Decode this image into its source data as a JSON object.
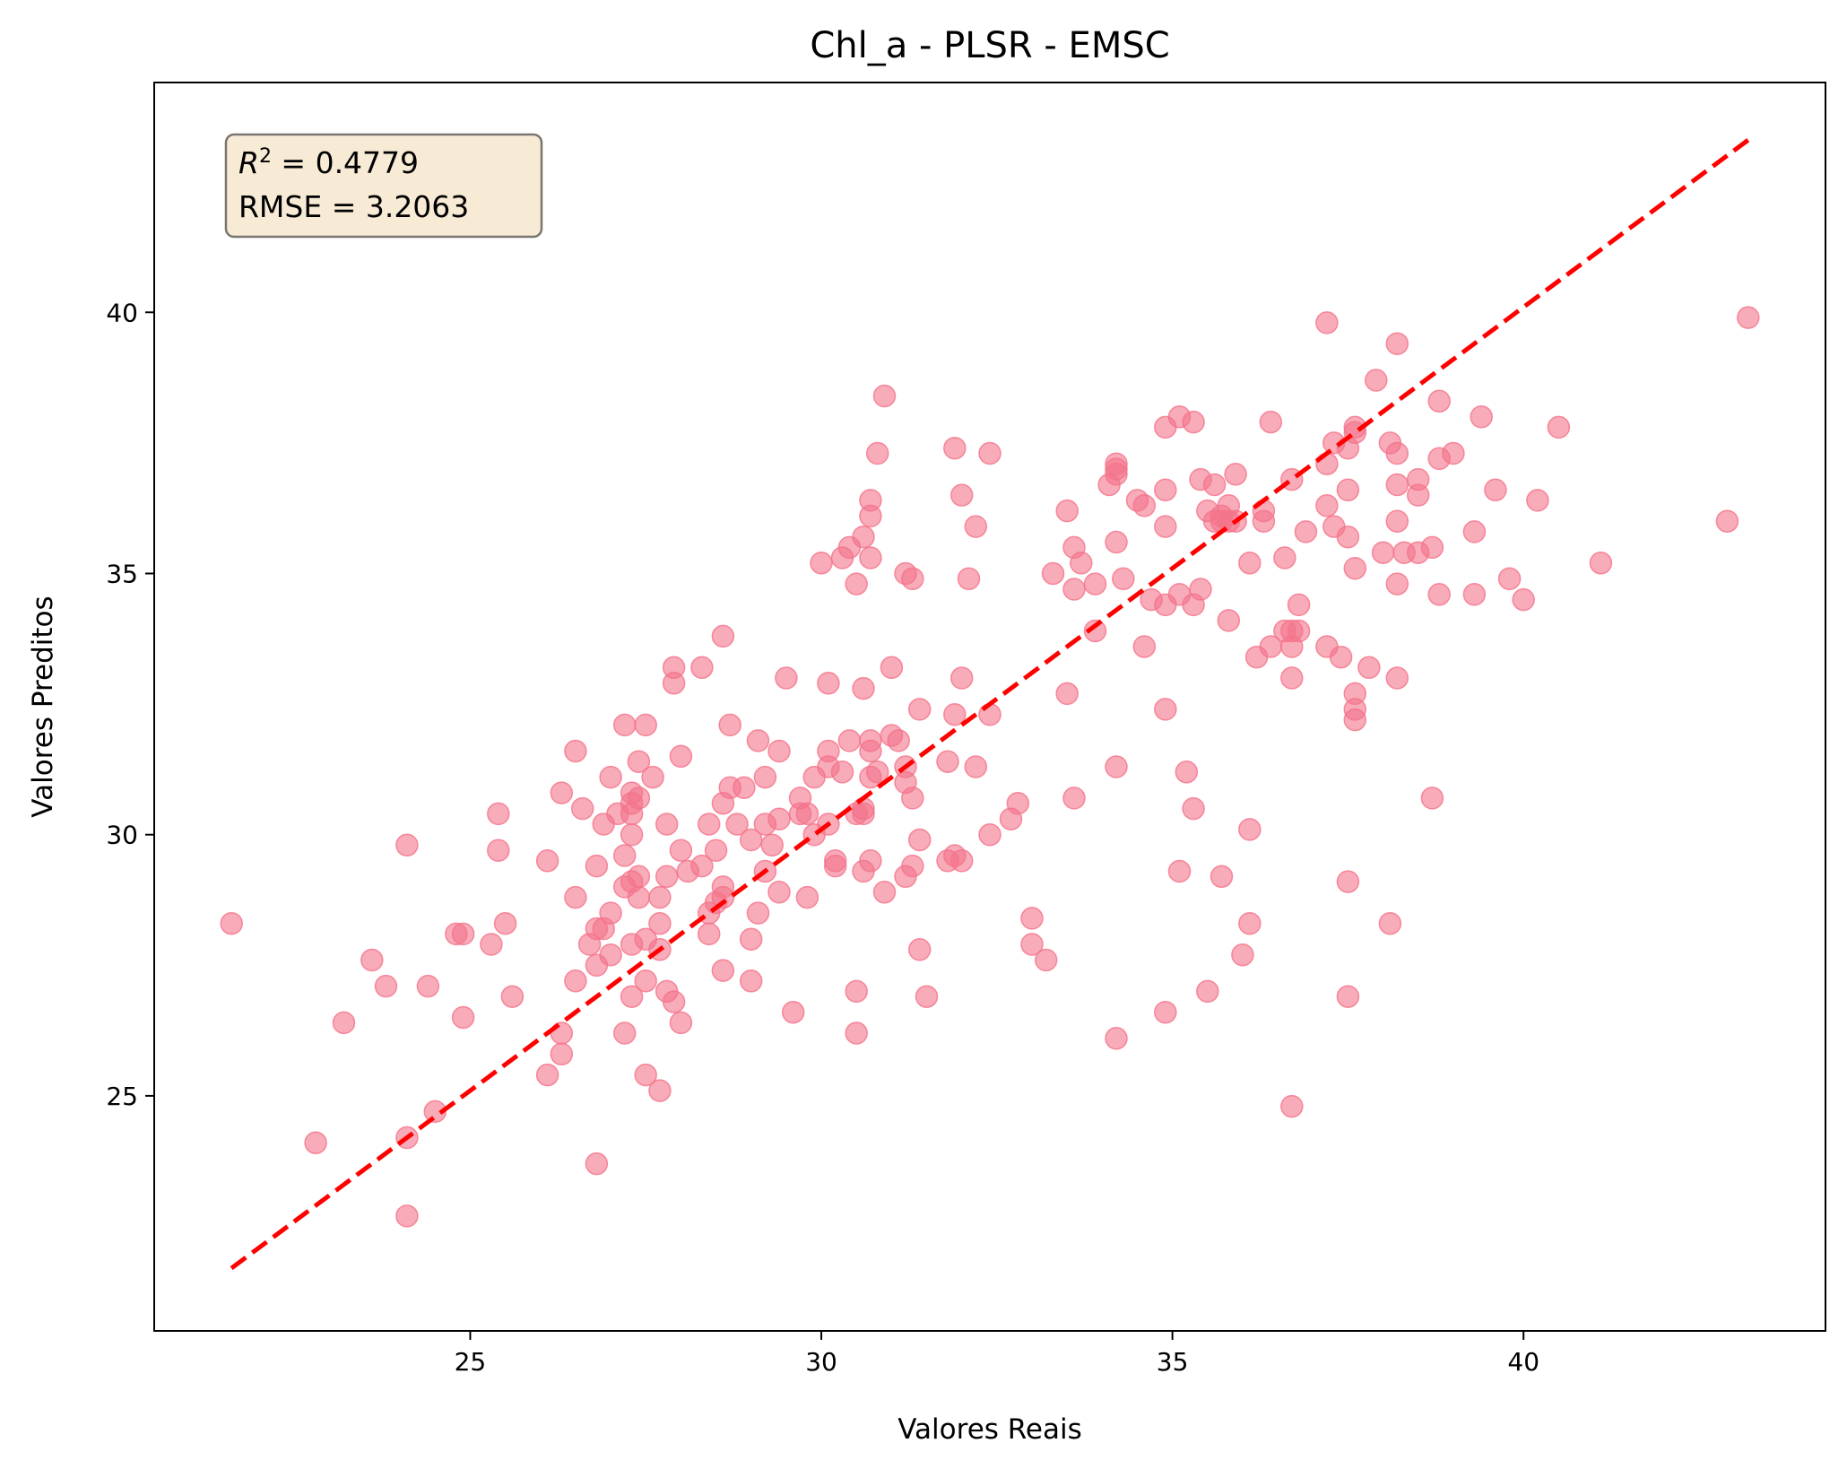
{
  "chart_data": {
    "type": "scatter",
    "title": "Chl_a - PLSR - EMSC",
    "xlabel": "Valores Reais",
    "ylabel": "Valores Preditos",
    "xlim": [
      20.5,
      44.3
    ],
    "ylim": [
      20.5,
      44.4
    ],
    "xticks": [
      25,
      30,
      35,
      40
    ],
    "yticks": [
      25,
      30,
      35,
      40
    ],
    "grid": false,
    "stats": {
      "r2_prefix": "R",
      "r2_sup": "2",
      "r2_value": " = 0.4779",
      "rmse": "RMSE = 3.2063"
    },
    "colors": {
      "points": "#f4738a",
      "line": "#ff0000",
      "box_fill": "#f8ebd6",
      "box_edge": "#7a7570"
    },
    "reference_line": {
      "from": [
        21.6,
        21.7
      ],
      "to": [
        43.2,
        43.3
      ],
      "style": "dashed"
    },
    "points": [
      [
        21.6,
        28.3
      ],
      [
        22.8,
        24.1
      ],
      [
        23.2,
        26.4
      ],
      [
        23.6,
        27.6
      ],
      [
        23.8,
        27.1
      ],
      [
        24.1,
        29.8
      ],
      [
        24.1,
        24.2
      ],
      [
        24.1,
        22.7
      ],
      [
        24.4,
        27.1
      ],
      [
        24.5,
        24.7
      ],
      [
        24.8,
        28.1
      ],
      [
        24.9,
        28.1
      ],
      [
        24.9,
        26.5
      ],
      [
        25.3,
        27.9
      ],
      [
        25.4,
        30.4
      ],
      [
        25.4,
        29.7
      ],
      [
        25.5,
        28.3
      ],
      [
        25.6,
        26.9
      ],
      [
        26.1,
        29.5
      ],
      [
        26.1,
        25.4
      ],
      [
        26.3,
        30.8
      ],
      [
        26.3,
        26.2
      ],
      [
        26.3,
        25.8
      ],
      [
        26.5,
        31.6
      ],
      [
        26.5,
        28.8
      ],
      [
        26.5,
        27.2
      ],
      [
        26.6,
        30.5
      ],
      [
        26.7,
        27.9
      ],
      [
        26.8,
        29.4
      ],
      [
        26.8,
        28.2
      ],
      [
        26.8,
        27.5
      ],
      [
        26.8,
        23.7
      ],
      [
        26.9,
        30.2
      ],
      [
        26.9,
        28.2
      ],
      [
        27.0,
        31.1
      ],
      [
        27.0,
        28.5
      ],
      [
        27.0,
        27.7
      ],
      [
        27.1,
        30.4
      ],
      [
        27.2,
        32.1
      ],
      [
        27.2,
        29.6
      ],
      [
        27.2,
        29.0
      ],
      [
        27.2,
        26.2
      ],
      [
        27.3,
        30.8
      ],
      [
        27.3,
        30.6
      ],
      [
        27.3,
        30.4
      ],
      [
        27.3,
        30.0
      ],
      [
        27.3,
        29.1
      ],
      [
        27.3,
        27.9
      ],
      [
        27.3,
        26.9
      ],
      [
        27.4,
        31.4
      ],
      [
        27.4,
        30.7
      ],
      [
        27.4,
        29.2
      ],
      [
        27.4,
        28.8
      ],
      [
        27.5,
        32.1
      ],
      [
        27.5,
        28.0
      ],
      [
        27.5,
        27.2
      ],
      [
        27.5,
        25.4
      ],
      [
        27.6,
        31.1
      ],
      [
        27.7,
        28.3
      ],
      [
        27.7,
        27.8
      ],
      [
        27.7,
        25.1
      ],
      [
        27.7,
        28.8
      ],
      [
        27.8,
        30.2
      ],
      [
        27.8,
        29.2
      ],
      [
        27.8,
        27.0
      ],
      [
        27.9,
        33.2
      ],
      [
        27.9,
        32.9
      ],
      [
        27.9,
        26.8
      ],
      [
        28.0,
        31.5
      ],
      [
        28.0,
        29.7
      ],
      [
        28.0,
        26.4
      ],
      [
        28.1,
        29.3
      ],
      [
        28.3,
        33.2
      ],
      [
        28.3,
        29.4
      ],
      [
        28.4,
        30.2
      ],
      [
        28.4,
        28.5
      ],
      [
        28.4,
        28.1
      ],
      [
        28.5,
        29.7
      ],
      [
        28.5,
        28.7
      ],
      [
        28.6,
        33.8
      ],
      [
        28.6,
        30.6
      ],
      [
        28.6,
        29.0
      ],
      [
        28.6,
        28.8
      ],
      [
        28.6,
        27.4
      ],
      [
        28.7,
        32.1
      ],
      [
        28.7,
        30.9
      ],
      [
        28.8,
        30.2
      ],
      [
        28.9,
        30.9
      ],
      [
        29.0,
        29.9
      ],
      [
        29.0,
        28.0
      ],
      [
        29.0,
        27.2
      ],
      [
        29.1,
        31.8
      ],
      [
        29.1,
        28.5
      ],
      [
        29.2,
        31.1
      ],
      [
        29.2,
        30.2
      ],
      [
        29.2,
        29.3
      ],
      [
        29.3,
        29.8
      ],
      [
        29.4,
        31.6
      ],
      [
        29.4,
        30.3
      ],
      [
        29.4,
        28.9
      ],
      [
        29.5,
        33.0
      ],
      [
        29.6,
        26.6
      ],
      [
        29.7,
        30.7
      ],
      [
        29.7,
        30.4
      ],
      [
        29.8,
        30.4
      ],
      [
        29.8,
        28.8
      ],
      [
        29.9,
        31.1
      ],
      [
        29.9,
        30.0
      ],
      [
        30.0,
        35.2
      ],
      [
        30.1,
        32.9
      ],
      [
        30.1,
        31.6
      ],
      [
        30.1,
        31.3
      ],
      [
        30.1,
        30.2
      ],
      [
        30.2,
        29.5
      ],
      [
        30.2,
        29.4
      ],
      [
        30.3,
        35.3
      ],
      [
        30.3,
        31.2
      ],
      [
        30.4,
        35.5
      ],
      [
        30.4,
        31.8
      ],
      [
        30.5,
        34.8
      ],
      [
        30.5,
        30.4
      ],
      [
        30.5,
        27.0
      ],
      [
        30.5,
        26.2
      ],
      [
        30.6,
        35.7
      ],
      [
        30.6,
        32.8
      ],
      [
        30.6,
        30.5
      ],
      [
        30.6,
        30.4
      ],
      [
        30.6,
        29.3
      ],
      [
        30.7,
        36.4
      ],
      [
        30.7,
        36.1
      ],
      [
        30.7,
        35.3
      ],
      [
        30.7,
        31.8
      ],
      [
        30.7,
        31.6
      ],
      [
        30.7,
        31.1
      ],
      [
        30.7,
        29.5
      ],
      [
        30.8,
        37.3
      ],
      [
        30.8,
        31.2
      ],
      [
        30.9,
        38.4
      ],
      [
        30.9,
        28.9
      ],
      [
        31.0,
        33.2
      ],
      [
        31.0,
        31.9
      ],
      [
        31.1,
        31.8
      ],
      [
        31.2,
        35.0
      ],
      [
        31.2,
        31.3
      ],
      [
        31.2,
        31.0
      ],
      [
        31.2,
        29.2
      ],
      [
        31.3,
        34.9
      ],
      [
        31.3,
        30.7
      ],
      [
        31.3,
        29.4
      ],
      [
        31.4,
        32.4
      ],
      [
        31.4,
        29.9
      ],
      [
        31.4,
        27.8
      ],
      [
        31.5,
        26.9
      ],
      [
        31.8,
        31.4
      ],
      [
        31.8,
        29.5
      ],
      [
        31.9,
        37.4
      ],
      [
        31.9,
        32.3
      ],
      [
        31.9,
        29.6
      ],
      [
        32.0,
        36.5
      ],
      [
        32.0,
        33.0
      ],
      [
        32.0,
        29.5
      ],
      [
        32.1,
        34.9
      ],
      [
        32.2,
        35.9
      ],
      [
        32.2,
        31.3
      ],
      [
        32.4,
        37.3
      ],
      [
        32.4,
        32.3
      ],
      [
        32.4,
        30.0
      ],
      [
        32.7,
        30.3
      ],
      [
        32.8,
        30.6
      ],
      [
        33.0,
        28.4
      ],
      [
        33.0,
        27.9
      ],
      [
        33.2,
        27.6
      ],
      [
        33.3,
        35.0
      ],
      [
        33.5,
        36.2
      ],
      [
        33.5,
        32.7
      ],
      [
        33.6,
        35.5
      ],
      [
        33.6,
        34.7
      ],
      [
        33.6,
        30.7
      ],
      [
        33.7,
        35.2
      ],
      [
        33.9,
        34.8
      ],
      [
        33.9,
        33.9
      ],
      [
        34.1,
        36.7
      ],
      [
        34.2,
        37.1
      ],
      [
        34.2,
        37.0
      ],
      [
        34.2,
        36.9
      ],
      [
        34.2,
        35.6
      ],
      [
        34.2,
        31.3
      ],
      [
        34.2,
        26.1
      ],
      [
        34.3,
        34.9
      ],
      [
        34.5,
        36.4
      ],
      [
        34.6,
        36.3
      ],
      [
        34.6,
        33.6
      ],
      [
        34.7,
        34.5
      ],
      [
        34.9,
        37.8
      ],
      [
        34.9,
        36.6
      ],
      [
        34.9,
        35.9
      ],
      [
        34.9,
        34.4
      ],
      [
        34.9,
        32.4
      ],
      [
        34.9,
        26.6
      ],
      [
        35.1,
        38.0
      ],
      [
        35.1,
        34.6
      ],
      [
        35.1,
        29.3
      ],
      [
        35.2,
        31.2
      ],
      [
        35.3,
        37.9
      ],
      [
        35.3,
        34.4
      ],
      [
        35.3,
        30.5
      ],
      [
        35.4,
        36.8
      ],
      [
        35.4,
        34.7
      ],
      [
        35.5,
        36.2
      ],
      [
        35.5,
        27.0
      ],
      [
        35.6,
        36.7
      ],
      [
        35.6,
        36.0
      ],
      [
        35.7,
        36.1
      ],
      [
        35.7,
        36.0
      ],
      [
        35.7,
        29.2
      ],
      [
        35.8,
        36.3
      ],
      [
        35.8,
        36.0
      ],
      [
        35.8,
        34.1
      ],
      [
        35.9,
        36.9
      ],
      [
        35.9,
        36.0
      ],
      [
        36.0,
        27.7
      ],
      [
        36.1,
        35.2
      ],
      [
        36.1,
        30.1
      ],
      [
        36.1,
        28.3
      ],
      [
        36.2,
        33.4
      ],
      [
        36.3,
        36.2
      ],
      [
        36.3,
        36.0
      ],
      [
        36.4,
        37.9
      ],
      [
        36.4,
        33.6
      ],
      [
        36.6,
        35.3
      ],
      [
        36.6,
        33.9
      ],
      [
        36.7,
        36.8
      ],
      [
        36.7,
        33.9
      ],
      [
        36.7,
        33.6
      ],
      [
        36.7,
        33.0
      ],
      [
        36.7,
        24.8
      ],
      [
        36.8,
        34.4
      ],
      [
        36.8,
        33.9
      ],
      [
        36.9,
        35.8
      ],
      [
        37.2,
        39.8
      ],
      [
        37.2,
        37.1
      ],
      [
        37.2,
        36.3
      ],
      [
        37.2,
        33.6
      ],
      [
        37.3,
        37.5
      ],
      [
        37.3,
        35.9
      ],
      [
        37.4,
        33.4
      ],
      [
        37.5,
        37.4
      ],
      [
        37.5,
        36.6
      ],
      [
        37.5,
        35.7
      ],
      [
        37.5,
        29.1
      ],
      [
        37.5,
        26.9
      ],
      [
        37.6,
        37.8
      ],
      [
        37.6,
        37.7
      ],
      [
        37.6,
        35.1
      ],
      [
        37.6,
        32.7
      ],
      [
        37.6,
        32.4
      ],
      [
        37.6,
        32.2
      ],
      [
        37.8,
        33.2
      ],
      [
        37.9,
        38.7
      ],
      [
        38.0,
        35.4
      ],
      [
        38.1,
        37.5
      ],
      [
        38.1,
        28.3
      ],
      [
        38.2,
        39.4
      ],
      [
        38.2,
        37.3
      ],
      [
        38.2,
        36.7
      ],
      [
        38.2,
        36.0
      ],
      [
        38.2,
        34.8
      ],
      [
        38.2,
        33.0
      ],
      [
        38.3,
        35.4
      ],
      [
        38.5,
        36.8
      ],
      [
        38.5,
        36.5
      ],
      [
        38.5,
        35.4
      ],
      [
        38.7,
        35.5
      ],
      [
        38.7,
        30.7
      ],
      [
        38.8,
        38.3
      ],
      [
        38.8,
        37.2
      ],
      [
        38.8,
        34.6
      ],
      [
        39.0,
        37.3
      ],
      [
        39.3,
        35.8
      ],
      [
        39.3,
        34.6
      ],
      [
        39.4,
        38.0
      ],
      [
        39.6,
        36.6
      ],
      [
        39.8,
        34.9
      ],
      [
        40.0,
        34.5
      ],
      [
        40.2,
        36.4
      ],
      [
        40.5,
        37.8
      ],
      [
        41.1,
        35.2
      ],
      [
        42.9,
        36.0
      ],
      [
        43.2,
        39.9
      ]
    ]
  }
}
